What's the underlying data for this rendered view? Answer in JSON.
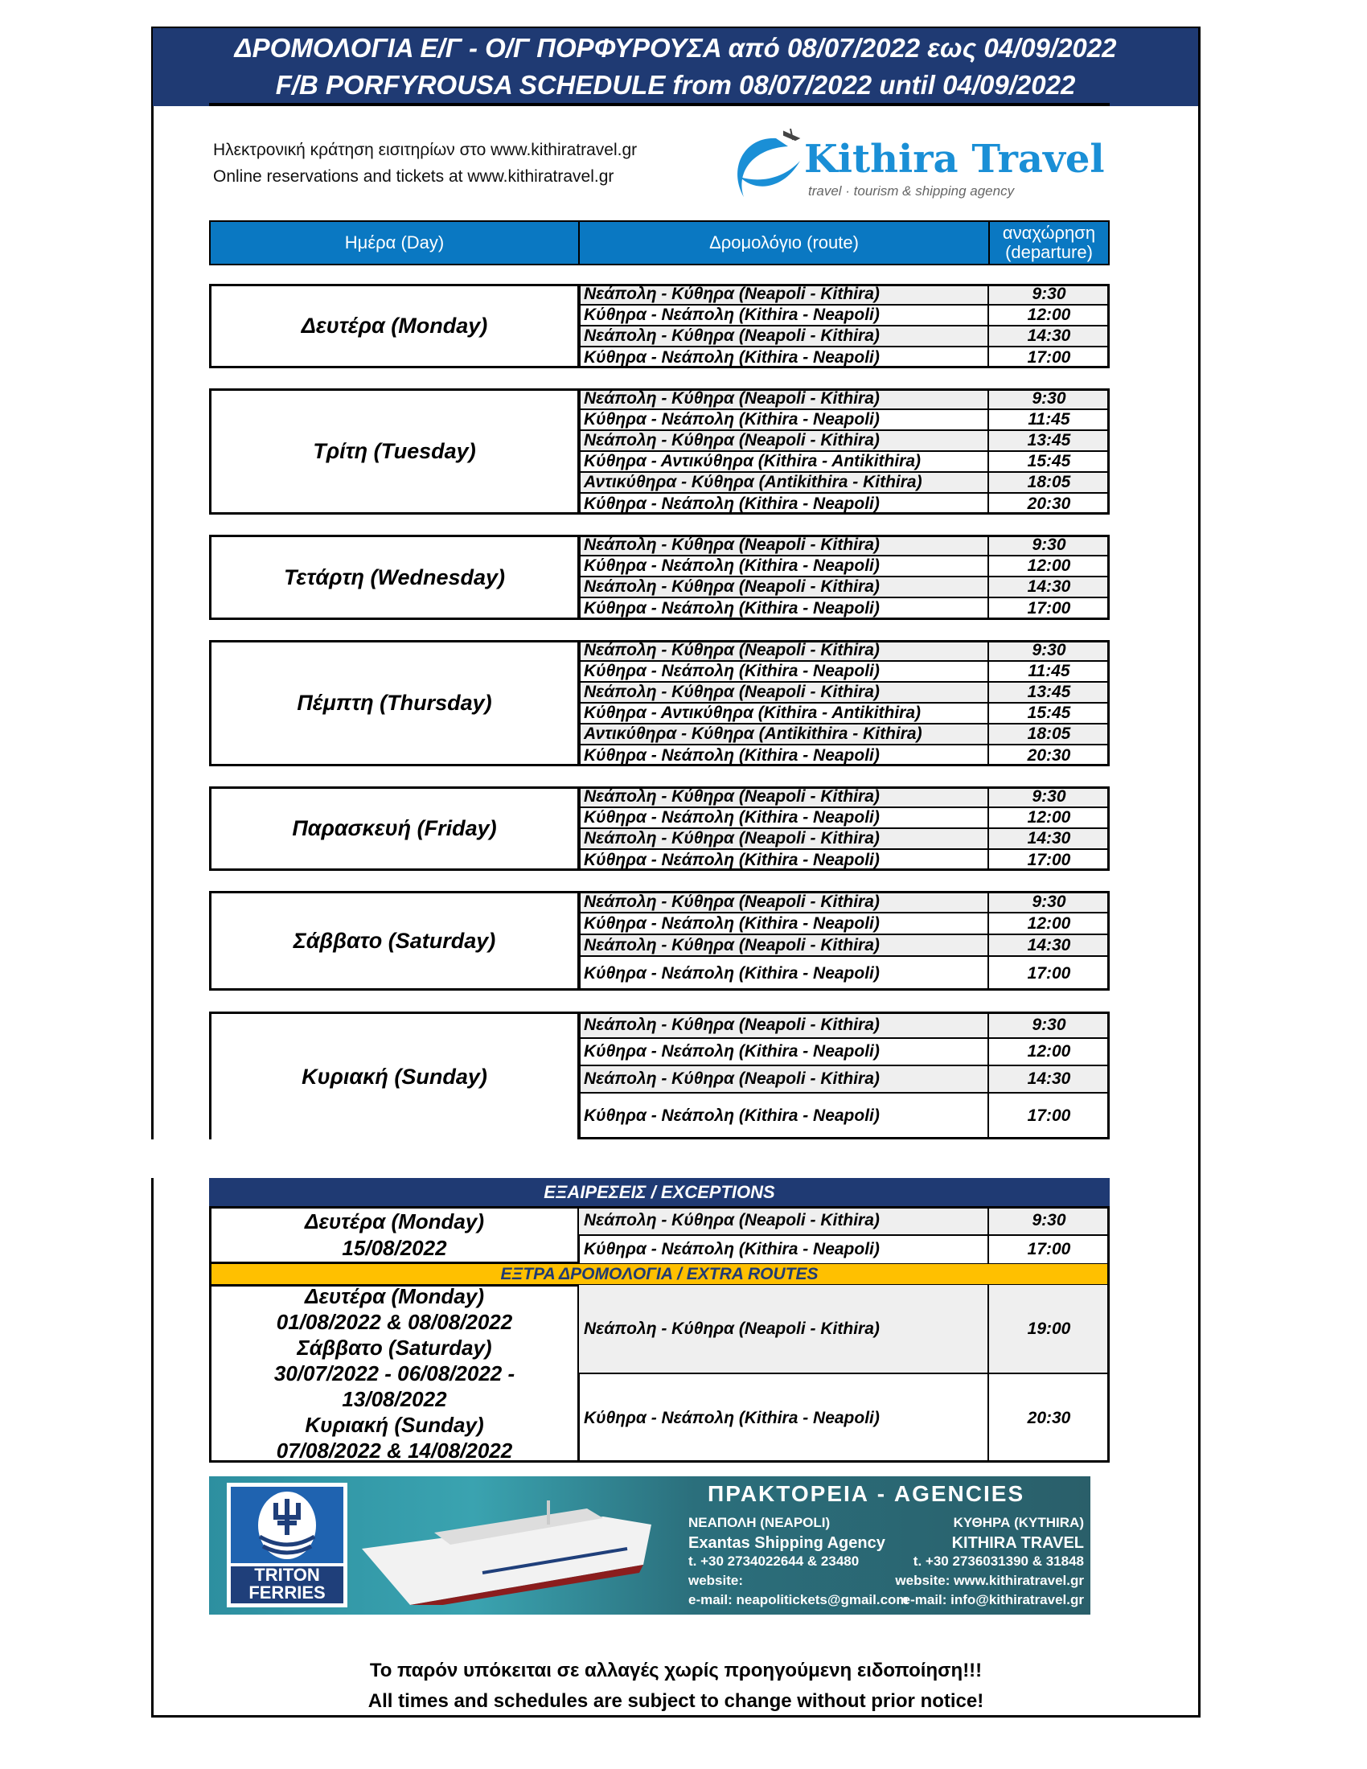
{
  "header": {
    "title_gr": "ΔΡΟΜΟΛΟΓΙΑ Ε/Γ - Ο/Γ ΠΟΡΦΥΡΟΥΣΑ από 08/07/2022 εως 04/09/2022",
    "title_en": "F/B PORFYROUSA SCHEDULE from 08/07/2022 until 04/09/2022"
  },
  "info": {
    "line_gr": "Ηλεκτρονική κράτηση εισιτηρίων στο www.kithiratravel.gr",
    "line_en": "Online reservations and tickets at www.kithiratravel.gr"
  },
  "logo": {
    "name": "Kithira Travel",
    "tagline": "travel · tourism & shipping agency"
  },
  "table_header": {
    "day": "Ημέρα (Day)",
    "route": "Δρομολόγιο (route)",
    "departure": "αναχώρηση (departure)"
  },
  "schedule": [
    {
      "day": "Δευτέρα (Monday)",
      "rows": [
        [
          "Νεάπολη - Κύθηρα (Neapoli - Kithira)",
          "9:30"
        ],
        [
          "Κύθηρα - Νεάπολη (Kithira - Neapoli)",
          "12:00"
        ],
        [
          "Νεάπολη - Κύθηρα (Neapoli - Kithira)",
          "14:30"
        ],
        [
          "Κύθηρα - Νεάπολη (Kithira - Neapoli)",
          "17:00"
        ]
      ]
    },
    {
      "day": "Τρίτη (Tuesday)",
      "rows": [
        [
          "Νεάπολη - Κύθηρα (Neapoli - Kithira)",
          "9:30"
        ],
        [
          "Κύθηρα - Νεάπολη (Kithira - Neapoli)",
          "11:45"
        ],
        [
          "Νεάπολη - Κύθηρα (Neapoli - Kithira)",
          "13:45"
        ],
        [
          "Κύθηρα - Αντικύθηρα (Kithira - Antikithira)",
          "15:45"
        ],
        [
          "Αντικύθηρα - Κύθηρα (Antikithira - Kithira)",
          "18:05"
        ],
        [
          "Κύθηρα - Νεάπολη (Kithira - Neapoli)",
          "20:30"
        ]
      ]
    },
    {
      "day": "Τετάρτη (Wednesday)",
      "rows": [
        [
          "Νεάπολη - Κύθηρα (Neapoli - Kithira)",
          "9:30"
        ],
        [
          "Κύθηρα - Νεάπολη (Kithira - Neapoli)",
          "12:00"
        ],
        [
          "Νεάπολη - Κύθηρα (Neapoli - Kithira)",
          "14:30"
        ],
        [
          "Κύθηρα - Νεάπολη (Kithira - Neapoli)",
          "17:00"
        ]
      ]
    },
    {
      "day": "Πέμπτη (Thursday)",
      "rows": [
        [
          "Νεάπολη - Κύθηρα (Neapoli - Kithira)",
          "9:30"
        ],
        [
          "Κύθηρα - Νεάπολη (Kithira - Neapoli)",
          "11:45"
        ],
        [
          "Νεάπολη - Κύθηρα (Neapoli - Kithira)",
          "13:45"
        ],
        [
          "Κύθηρα - Αντικύθηρα (Kithira - Antikithira)",
          "15:45"
        ],
        [
          "Αντικύθηρα - Κύθηρα (Antikithira - Kithira)",
          "18:05"
        ],
        [
          "Κύθηρα - Νεάπολη (Kithira - Neapoli)",
          "20:30"
        ]
      ]
    },
    {
      "day": "Παρασκευή (Friday)",
      "rows": [
        [
          "Νεάπολη - Κύθηρα (Neapoli - Kithira)",
          "9:30"
        ],
        [
          "Κύθηρα - Νεάπολη (Kithira - Neapoli)",
          "12:00"
        ],
        [
          "Νεάπολη - Κύθηρα (Neapoli - Kithira)",
          "14:30"
        ],
        [
          "Κύθηρα - Νεάπολη (Kithira - Neapoli)",
          "17:00"
        ]
      ]
    },
    {
      "day": "Σάββατο (Saturday)",
      "rows": [
        [
          "Νεάπολη - Κύθηρα (Neapoli - Kithira)",
          "9:30"
        ],
        [
          "Κύθηρα - Νεάπολη (Kithira - Neapoli)",
          "12:00"
        ],
        [
          "Νεάπολη - Κύθηρα (Neapoli - Kithira)",
          "14:30"
        ],
        [
          "Κύθηρα - Νεάπολη (Kithira - Neapoli)",
          "17:00"
        ]
      ]
    },
    {
      "day": "Κυριακή (Sunday)",
      "rows": [
        [
          "Νεάπολη - Κύθηρα (Neapoli - Kithira)",
          "9:30"
        ],
        [
          "Κύθηρα - Νεάπολη (Kithira - Neapoli)",
          "12:00"
        ],
        [
          "Νεάπολη - Κύθηρα (Neapoli - Kithira)",
          "14:30"
        ],
        [
          "Κύθηρα - Νεάπολη (Kithira - Neapoli)",
          "17:00"
        ]
      ]
    }
  ],
  "exceptions": {
    "title": "ΕΞΑΙΡΕΣΕΙΣ / EXCEPTIONS",
    "day": "Δευτέρα (Monday)\n15/08/2022",
    "rows": [
      [
        "Νεάπολη - Κύθηρα (Neapoli - Kithira)",
        "9:30"
      ],
      [
        "Κύθηρα - Νεάπολη (Kithira - Neapoli)",
        "17:00"
      ]
    ]
  },
  "extra": {
    "title": "ΕΞΤΡΑ ΔΡΟΜΟΛΟΓΙΑ / EXTRA ROUTES",
    "days": "Δευτέρα (Monday)\n01/08/2022 & 08/08/2022\nΣάββατο (Saturday)\n30/07/2022 - 06/08/2022 -\n13/08/2022\nΚυριακή (Sunday)\n07/08/2022 & 14/08/2022",
    "rows": [
      [
        "Νεάπολη - Κύθηρα (Neapoli - Kithira)",
        "19:00"
      ],
      [
        "Κύθηρα - Νεάπολη (Kithira - Neapoli)",
        "20:30"
      ]
    ]
  },
  "banner": {
    "brand": "TRITON FERRIES",
    "title": "ΠΡΑΚΤΟΡΕΙΑ - AGENCIES",
    "left": [
      "ΝΕΑΠΟΛΗ (NEAPOLI)",
      "Exantas Shipping Agency",
      "t. +30 2734022644 & 23480",
      "website:",
      "e-mail: neapolitickets@gmail.com"
    ],
    "right": [
      "ΚΥΘΗΡΑ (KYTHIRA)",
      "KITHIRA TRAVEL",
      "t. +30 2736031390 & 31848",
      "website: www.kithiratravel.gr",
      "e-mail: info@kithiratravel.gr"
    ]
  },
  "footer": {
    "line_gr": "Το παρόν υπόκειται σε αλλαγές χωρίς προηγούμενη ειδοποίηση!!!",
    "line_en": "All times and schedules are subject to change without prior notice!"
  },
  "colors": {
    "header_navy": "#1f3a73",
    "table_header_blue": "#0a78c2",
    "extra_yellow": "#ffc000",
    "logo_blue": "#1a8fd6"
  }
}
